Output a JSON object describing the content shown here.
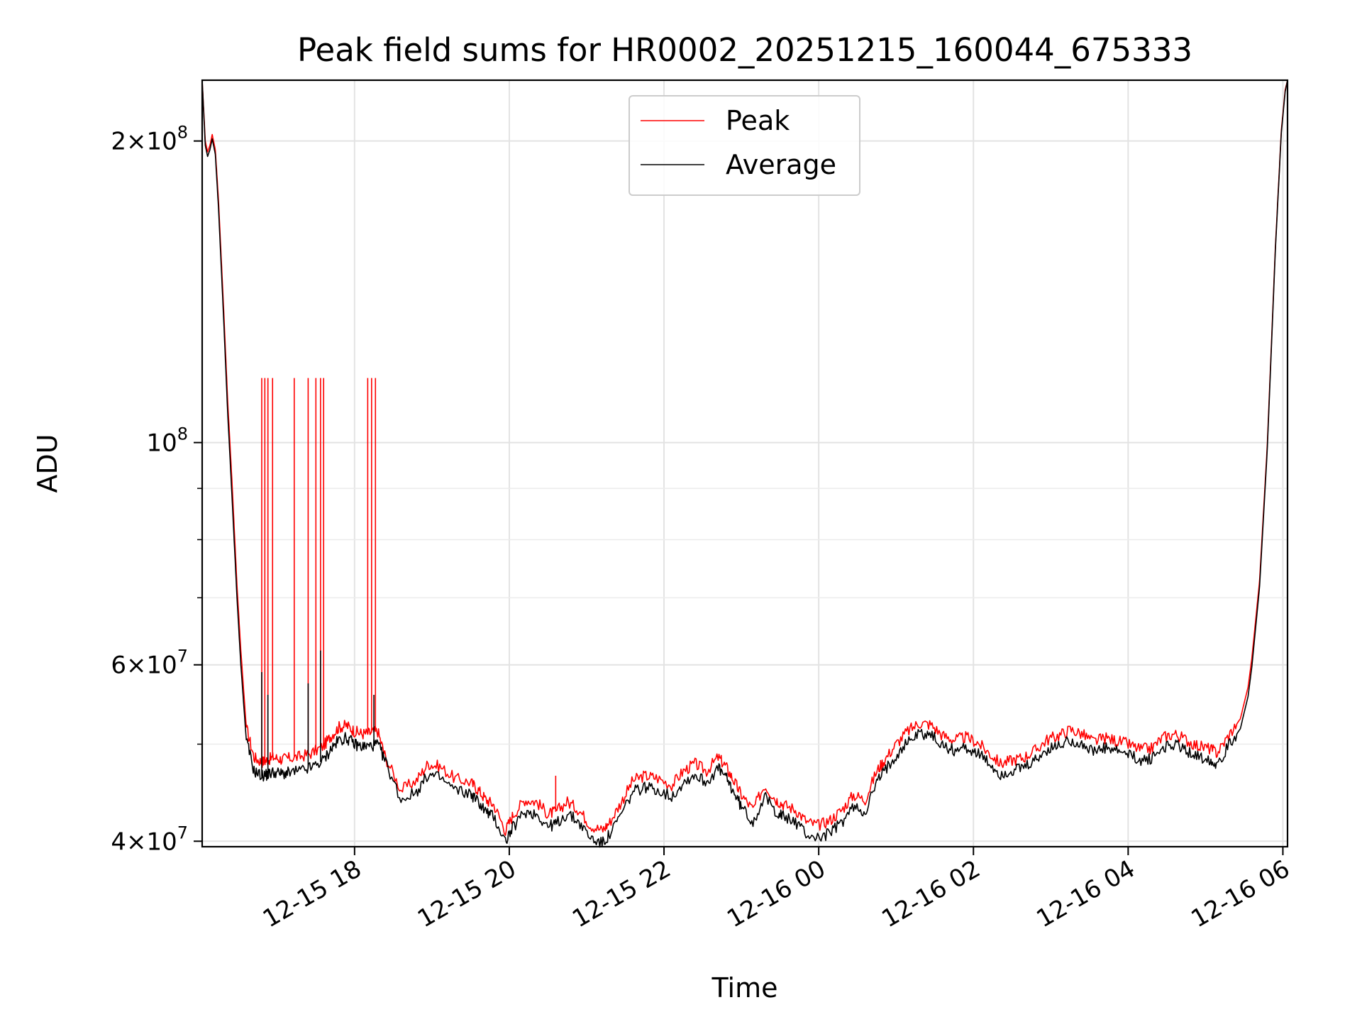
{
  "chart_data": {
    "type": "line",
    "title": "Peak field sums for HR0002_20251215_160044_675333",
    "xlabel": "Time",
    "ylabel": "ADU",
    "yscale": "log",
    "ylim": [
      39500000,
      230000000
    ],
    "xlim_hours": [
      16.03,
      30.06
    ],
    "grid": true,
    "legend_position": "top-center",
    "x_ticks": [
      {
        "value_hours": 18,
        "label": "12-15 18"
      },
      {
        "value_hours": 20,
        "label": "12-15 20"
      },
      {
        "value_hours": 22,
        "label": "12-15 22"
      },
      {
        "value_hours": 24,
        "label": "12-16 00"
      },
      {
        "value_hours": 26,
        "label": "12-16 02"
      },
      {
        "value_hours": 28,
        "label": "12-16 04"
      },
      {
        "value_hours": 30,
        "label": "12-16 06"
      }
    ],
    "y_major_ticks": [
      {
        "value": 40000000,
        "mantissa": "4",
        "exponent": "7"
      },
      {
        "value": 60000000,
        "mantissa": "6",
        "exponent": "7"
      },
      {
        "value": 100000000,
        "mantissa": "",
        "exponent": "8"
      },
      {
        "value": 200000000,
        "mantissa": "2",
        "exponent": "8"
      }
    ],
    "y_minor_ticks": [
      50000000,
      70000000,
      80000000,
      90000000
    ],
    "series": [
      {
        "name": "Peak",
        "color": "#ff0000",
        "x_hours": [
          16.03,
          16.07,
          16.1,
          16.13,
          16.16,
          16.2,
          16.24,
          16.3,
          16.36,
          16.42,
          16.48,
          16.53,
          16.6,
          16.7,
          16.8,
          16.87,
          16.95,
          17.05,
          17.15,
          17.3,
          17.45,
          17.6,
          17.7,
          17.8,
          17.9,
          18.0,
          18.1,
          18.2,
          18.3,
          18.4,
          18.6,
          18.8,
          18.95,
          19.1,
          19.3,
          19.5,
          19.6,
          19.7,
          19.8,
          19.95,
          20.05,
          20.2,
          20.35,
          20.5,
          20.6,
          20.75,
          20.9,
          21.05,
          21.2,
          21.3,
          21.45,
          21.6,
          21.75,
          21.9,
          22.1,
          22.25,
          22.4,
          22.55,
          22.7,
          22.8,
          22.9,
          23.0,
          23.15,
          23.3,
          23.45,
          23.55,
          23.7,
          23.85,
          24.0,
          24.15,
          24.3,
          24.45,
          24.6,
          24.75,
          24.85,
          25.0,
          25.15,
          25.3,
          25.45,
          25.6,
          25.75,
          25.9,
          26.05,
          26.2,
          26.35,
          26.5,
          26.65,
          26.8,
          26.95,
          27.1,
          27.25,
          27.4,
          27.55,
          27.7,
          27.85,
          28.0,
          28.15,
          28.3,
          28.45,
          28.6,
          28.75,
          28.9,
          29.05,
          29.15,
          29.3,
          29.45,
          29.55,
          29.6,
          29.7,
          29.8,
          29.9,
          29.98,
          30.03,
          30.06
        ],
        "values": [
          230000000,
          200000000,
          195000000,
          198000000,
          203000000,
          196000000,
          175000000,
          140000000,
          110000000,
          90000000,
          72000000,
          62000000,
          52000000,
          48500000,
          48000000,
          48200000,
          48500000,
          48300000,
          48400000,
          48600000,
          49000000,
          49800000,
          51000000,
          52000000,
          52200000,
          51500000,
          51200000,
          51300000,
          51500000,
          48500000,
          45000000,
          46000000,
          47800000,
          47500000,
          46200000,
          45800000,
          45000000,
          44000000,
          43500000,
          41000000,
          42500000,
          44000000,
          43800000,
          42600000,
          42800000,
          43800000,
          43000000,
          41500000,
          41000000,
          41800000,
          43800000,
          46000000,
          46500000,
          46300000,
          45500000,
          47000000,
          47800000,
          47000000,
          48500000,
          47500000,
          46000000,
          44500000,
          43000000,
          45500000,
          44000000,
          43500000,
          43000000,
          41800000,
          41500000,
          42000000,
          43000000,
          44500000,
          44000000,
          47000000,
          48200000,
          50000000,
          51500000,
          52500000,
          52300000,
          51000000,
          50500000,
          50800000,
          50200000,
          49000000,
          47800000,
          48200000,
          48500000,
          49300000,
          50500000,
          51000000,
          51700000,
          51200000,
          50300000,
          50700000,
          50400000,
          50000000,
          49400000,
          49500000,
          50800000,
          51200000,
          50500000,
          49800000,
          49500000,
          49000000,
          51000000,
          53000000,
          57000000,
          61000000,
          73000000,
          100000000,
          155000000,
          205000000,
          225000000,
          230000000
        ],
        "spikes": [
          {
            "x_hours": 16.8,
            "value": 116000000
          },
          {
            "x_hours": 16.84,
            "value": 116000000
          },
          {
            "x_hours": 16.88,
            "value": 116000000
          },
          {
            "x_hours": 16.94,
            "value": 116000000
          },
          {
            "x_hours": 17.22,
            "value": 116000000
          },
          {
            "x_hours": 17.4,
            "value": 116000000
          },
          {
            "x_hours": 17.5,
            "value": 116000000
          },
          {
            "x_hours": 17.56,
            "value": 116000000
          },
          {
            "x_hours": 17.6,
            "value": 116000000
          },
          {
            "x_hours": 18.17,
            "value": 116000000
          },
          {
            "x_hours": 18.22,
            "value": 116000000
          },
          {
            "x_hours": 18.27,
            "value": 116000000
          },
          {
            "x_hours": 20.6,
            "value": 46500000
          }
        ]
      },
      {
        "name": "Average",
        "color": "#000000",
        "x_hours": [
          16.03,
          16.07,
          16.1,
          16.13,
          16.16,
          16.2,
          16.24,
          16.3,
          16.36,
          16.42,
          16.48,
          16.53,
          16.6,
          16.7,
          16.8,
          16.87,
          16.95,
          17.05,
          17.15,
          17.3,
          17.45,
          17.6,
          17.7,
          17.8,
          17.9,
          18.0,
          18.1,
          18.2,
          18.3,
          18.4,
          18.6,
          18.8,
          18.95,
          19.1,
          19.3,
          19.5,
          19.6,
          19.7,
          19.8,
          19.95,
          20.05,
          20.2,
          20.35,
          20.5,
          20.6,
          20.75,
          20.9,
          21.05,
          21.2,
          21.3,
          21.45,
          21.6,
          21.75,
          21.9,
          22.1,
          22.25,
          22.4,
          22.55,
          22.7,
          22.8,
          22.9,
          23.0,
          23.15,
          23.3,
          23.45,
          23.55,
          23.7,
          23.85,
          24.0,
          24.15,
          24.3,
          24.45,
          24.6,
          24.75,
          24.85,
          25.0,
          25.15,
          25.3,
          25.45,
          25.6,
          25.75,
          25.9,
          26.05,
          26.2,
          26.35,
          26.5,
          26.65,
          26.8,
          26.95,
          27.1,
          27.25,
          27.4,
          27.55,
          27.7,
          27.85,
          28.0,
          28.15,
          28.3,
          28.45,
          28.6,
          28.75,
          28.9,
          29.05,
          29.15,
          29.3,
          29.45,
          29.55,
          29.6,
          29.7,
          29.8,
          29.9,
          29.98,
          30.03,
          30.06
        ],
        "values": [
          230000000,
          198000000,
          193000000,
          196000000,
          201000000,
          194000000,
          172000000,
          137000000,
          107000000,
          87000000,
          70000000,
          60000000,
          50500000,
          47000000,
          46500000,
          46600000,
          46900000,
          46700000,
          46800000,
          47000000,
          47400000,
          48200000,
          49500000,
          50500000,
          50700000,
          50000000,
          49700000,
          49800000,
          50000000,
          48000000,
          44000000,
          44800000,
          46600000,
          46300000,
          45000000,
          44600000,
          43800000,
          42800000,
          42300000,
          40000000,
          41300000,
          42800000,
          42600000,
          41400000,
          41600000,
          42600000,
          41800000,
          40300000,
          39800000,
          40600000,
          42600000,
          44800000,
          45300000,
          45100000,
          44300000,
          45800000,
          46600000,
          45800000,
          47300000,
          46300000,
          44800000,
          43300000,
          41800000,
          44300000,
          42800000,
          42300000,
          41800000,
          40600000,
          40300000,
          40800000,
          41800000,
          43300000,
          42800000,
          45800000,
          47000000,
          48800000,
          50300000,
          51300000,
          51100000,
          49800000,
          49300000,
          49600000,
          49000000,
          47800000,
          46600000,
          47000000,
          47300000,
          48100000,
          49300000,
          49800000,
          50500000,
          50000000,
          49100000,
          49500000,
          49200000,
          48800000,
          48200000,
          48300000,
          49600000,
          50000000,
          49300000,
          48600000,
          48300000,
          47800000,
          49800000,
          51800000,
          55800000,
          59800000,
          72000000,
          99000000,
          154000000,
          204000000,
          224000000,
          230000000
        ],
        "spikes": [
          {
            "x_hours": 16.8,
            "value": 59000000
          },
          {
            "x_hours": 16.88,
            "value": 56000000
          },
          {
            "x_hours": 17.4,
            "value": 57500000
          },
          {
            "x_hours": 17.56,
            "value": 62000000
          },
          {
            "x_hours": 18.25,
            "value": 56000000
          }
        ]
      }
    ]
  }
}
